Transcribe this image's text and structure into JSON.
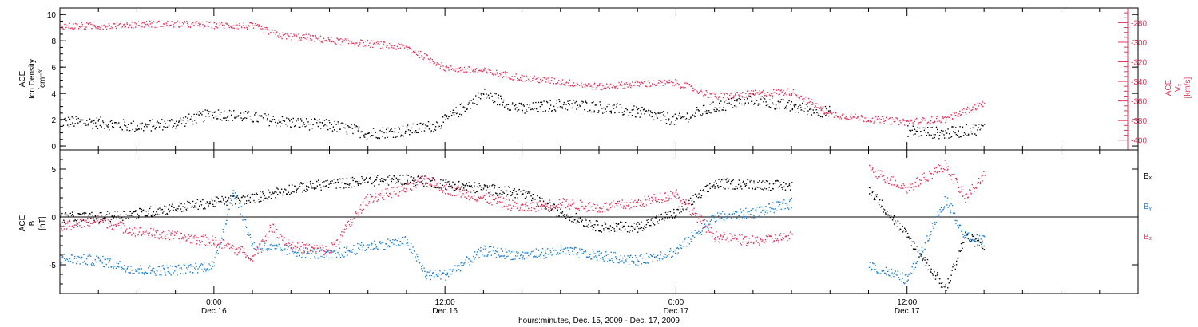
{
  "figure": {
    "xlabel": "hours:minutes, Dec. 15, 2009 - Dec. 17, 2009",
    "time_ticks": [
      {
        "hour": 0,
        "time": "0:00",
        "date": "Dec.16"
      },
      {
        "hour": 12,
        "time": "12:00",
        "date": "Dec.16"
      },
      {
        "hour": 24,
        "time": "0:00",
        "date": "Dec.17"
      },
      {
        "hour": 36,
        "time": "12:00",
        "date": "Dec.17"
      }
    ]
  },
  "colors": {
    "black": "#000000",
    "pink": "#e8325a",
    "blue": "#1a7fd6",
    "axis": "#000000"
  },
  "chart_data": [
    {
      "type": "scatter",
      "title": "",
      "x_range_hours": [
        -8,
        48
      ],
      "xlabel": "hours:minutes, Dec. 15, 2009 - Dec. 17, 2009",
      "left_axis": {
        "label_lines": [
          "ACE",
          "Ion Density"
        ],
        "unit": "[cm⁻³]",
        "ylim": [
          -0.3,
          10.5
        ],
        "ticks": [
          0,
          2,
          4,
          6,
          8,
          10
        ]
      },
      "right_axis": {
        "label_lines": [
          "ACE",
          "Vₓ"
        ],
        "unit": "[km/s]",
        "ylim": [
          -410,
          -265
        ],
        "ticks": [
          -280,
          -300,
          -320,
          -340,
          -360,
          -380,
          -400
        ],
        "color": "#e8325a"
      },
      "series": [
        {
          "axis": "left",
          "color": "#000000",
          "x": [
            -8,
            -6,
            -4,
            -2,
            0,
            2,
            4,
            6,
            8,
            10,
            11.5,
            12,
            14,
            16,
            18,
            20,
            22,
            24,
            26,
            28,
            30,
            32,
            34,
            36,
            38,
            40
          ],
          "y": [
            1.9,
            1.8,
            1.5,
            1.8,
            2.5,
            2.2,
            1.8,
            1.6,
            1.0,
            1.2,
            1.6,
            2.0,
            4.0,
            2.8,
            3.2,
            3.0,
            2.6,
            2.0,
            3.0,
            3.6,
            3.0,
            2.6,
            null,
            1.2,
            1.0,
            1.4
          ]
        },
        {
          "axis": "right",
          "color": "#e8325a",
          "x": [
            -8,
            -6,
            -4,
            -2,
            0,
            2,
            3.5,
            5,
            6,
            8,
            10,
            11.5,
            12,
            14,
            16,
            18,
            20,
            22,
            24,
            26,
            28,
            30,
            32,
            34,
            36,
            38,
            40
          ],
          "y": [
            -283,
            -283,
            -281,
            -281,
            -282,
            -283,
            -293,
            -295,
            -298,
            -301,
            -305,
            -320,
            -326,
            -329,
            -336,
            -340,
            -345,
            -342,
            -341,
            -355,
            -352,
            -350,
            -373,
            -378,
            -381,
            -378,
            -362
          ]
        }
      ]
    },
    {
      "type": "scatter",
      "title": "",
      "x_range_hours": [
        -8,
        48
      ],
      "ylabel": "ACE B",
      "unit": "[nT]",
      "ylim": [
        -8,
        7
      ],
      "yticks": [
        -5,
        0,
        5
      ],
      "zero_line": true,
      "legend": "right",
      "series": [
        {
          "name": "Bₓ",
          "color": "#000000",
          "x": [
            -8,
            -6,
            -4,
            -2,
            0,
            2,
            4,
            6,
            8,
            10,
            12,
            14,
            16,
            18,
            20,
            22,
            24,
            26,
            28,
            30,
            32,
            34,
            36,
            38,
            39,
            40
          ],
          "y": [
            0,
            0,
            0.4,
            1.0,
            1.6,
            2.0,
            3.0,
            3.5,
            3.8,
            4.0,
            3.5,
            3.0,
            2.5,
            0.5,
            -1.0,
            -1.0,
            0.5,
            3.5,
            3.5,
            3.2,
            null,
            3.0,
            -2.0,
            -7.5,
            -2.0,
            -3.0
          ]
        },
        {
          "name": "Bᵧ",
          "color": "#1a7fd6",
          "x": [
            -8,
            -6,
            -4,
            -2,
            0,
            1,
            2,
            4,
            6,
            8,
            10,
            11,
            12,
            14,
            16,
            18,
            20,
            22,
            24,
            26,
            28,
            30,
            32,
            34,
            36,
            38,
            39,
            40
          ],
          "y": [
            -4.3,
            -4.5,
            -5.5,
            -5.5,
            -5.0,
            3.0,
            -3.0,
            -3.5,
            -4.0,
            -3.0,
            -2.5,
            -6.0,
            -6.0,
            -3.5,
            -4.0,
            -3.5,
            -4.0,
            -4.5,
            -3.5,
            0,
            0.5,
            1.5,
            null,
            -5.0,
            -6.5,
            2.0,
            -2.0,
            -2.5
          ]
        },
        {
          "name": "B₂",
          "color": "#e8325a",
          "x": [
            -8,
            -6,
            -4,
            -2,
            0,
            2,
            3,
            4,
            6,
            8,
            10,
            11,
            12,
            14,
            16,
            18,
            20,
            22,
            24,
            26,
            28,
            30,
            32,
            34,
            36,
            38,
            39,
            40
          ],
          "y": [
            -1.0,
            -0.3,
            -1.5,
            -2.0,
            -2.5,
            -4.0,
            -1.0,
            -3.0,
            -3.5,
            2.0,
            3.0,
            4.0,
            3.0,
            2.0,
            1.0,
            1.5,
            1.0,
            1.5,
            2.5,
            -2.0,
            -2.5,
            -2.0,
            null,
            5.0,
            3.0,
            5.5,
            2.0,
            4.5
          ]
        }
      ]
    }
  ]
}
